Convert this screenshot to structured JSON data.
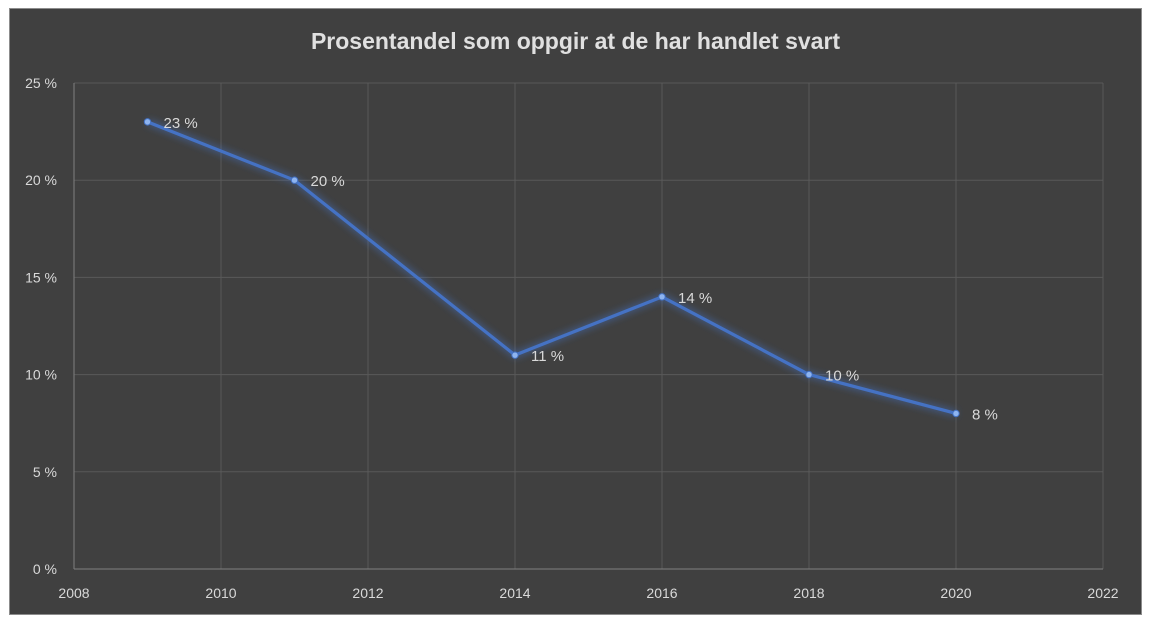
{
  "chart_data": {
    "type": "scatter",
    "title": "Prosentandel som oppgir at de har handlet svart",
    "xlabel": "",
    "ylabel": "",
    "x": [
      2009,
      2011,
      2014,
      2016,
      2018,
      2020
    ],
    "series": [
      {
        "values": [
          23,
          20,
          11,
          14,
          10,
          8
        ],
        "labels": [
          "23 %",
          "20 %",
          "11 %",
          "14 %",
          "10 %",
          "8 %"
        ]
      }
    ],
    "xlim": [
      2008,
      2022
    ],
    "ylim": [
      0,
      25
    ],
    "x_ticks": [
      2008,
      2010,
      2012,
      2014,
      2016,
      2018,
      2020,
      2022
    ],
    "y_ticks": [
      0,
      5,
      10,
      15,
      20,
      25
    ],
    "y_tick_labels": [
      "0 %",
      "5 %",
      "10 %",
      "15 %",
      "20 %",
      "25 %"
    ],
    "grid": true,
    "legend": "none",
    "colors": {
      "line": "#4472c4",
      "background": "#404040",
      "grid": "#595959",
      "text": "#d9d9d9"
    }
  }
}
